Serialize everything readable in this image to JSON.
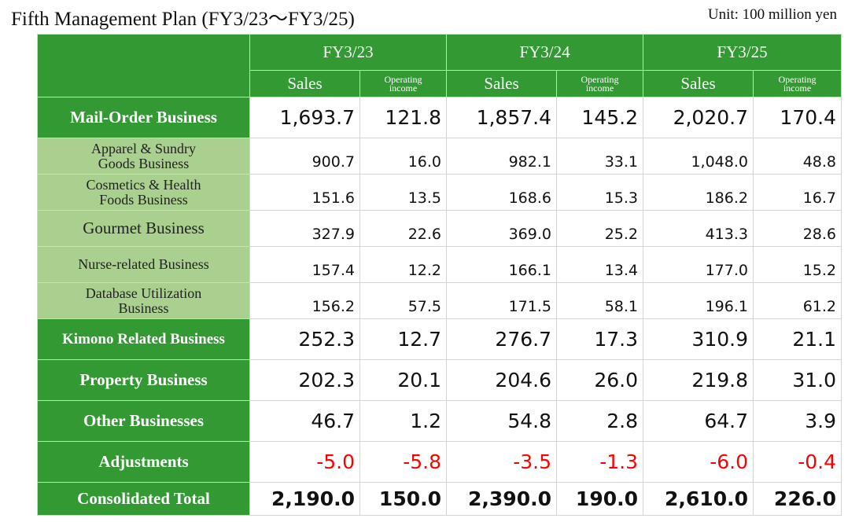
{
  "title": "Fifth Management Plan (FY3/23〜FY3/25)",
  "unit": "Unit: 100 million yen",
  "years": [
    "FY3/23",
    "FY3/24",
    "FY3/25"
  ],
  "sales_header": "Sales",
  "opinc_header_line1": "Operating",
  "opinc_header_line2": "income",
  "rows": {
    "mail": {
      "label": "Mail-Order Business",
      "values": [
        "1,693.7",
        "121.8",
        "1,857.4",
        "145.2",
        "2,020.7",
        "170.4"
      ]
    },
    "apparel": {
      "label_line1": "Apparel & Sundry",
      "label_line2": "Goods Business",
      "values": [
        "900.7",
        "16.0",
        "982.1",
        "33.1",
        "1,048.0",
        "48.8"
      ]
    },
    "cosmetics": {
      "label_line1": "Cosmetics & Health",
      "label_line2": "Foods Business",
      "values": [
        "151.6",
        "13.5",
        "168.6",
        "15.3",
        "186.2",
        "16.7"
      ]
    },
    "gourmet": {
      "label": "Gourmet Business",
      "values": [
        "327.9",
        "22.6",
        "369.0",
        "25.2",
        "413.3",
        "28.6"
      ]
    },
    "nurse": {
      "label": "Nurse-related Business",
      "values": [
        "157.4",
        "12.2",
        "166.1",
        "13.4",
        "177.0",
        "15.2"
      ]
    },
    "database": {
      "label_line1": "Database Utilization",
      "label_line2": "Business",
      "values": [
        "156.2",
        "57.5",
        "171.5",
        "58.1",
        "196.1",
        "61.2"
      ]
    },
    "kimono": {
      "label": "Kimono Related Business",
      "values": [
        "252.3",
        "12.7",
        "276.7",
        "17.3",
        "310.9",
        "21.1"
      ]
    },
    "property": {
      "label": "Property Business",
      "values": [
        "202.3",
        "20.1",
        "204.6",
        "26.0",
        "219.8",
        "31.0"
      ]
    },
    "other": {
      "label": "Other Businesses",
      "values": [
        "46.7",
        "1.2",
        "54.8",
        "2.8",
        "64.7",
        "3.9"
      ]
    },
    "adjust": {
      "label": "Adjustments",
      "values": [
        "-5.0",
        "-5.8",
        "-3.5",
        "-1.3",
        "-6.0",
        "-0.4"
      ]
    },
    "total": {
      "label": "Consolidated Total",
      "values": [
        "2,190.0",
        "150.0",
        "2,390.0",
        "190.0",
        "2,610.0",
        "226.0"
      ]
    }
  },
  "colors": {
    "header_green": "#339933",
    "sub_green": "#a9d08e",
    "negative": "#ff0000"
  }
}
